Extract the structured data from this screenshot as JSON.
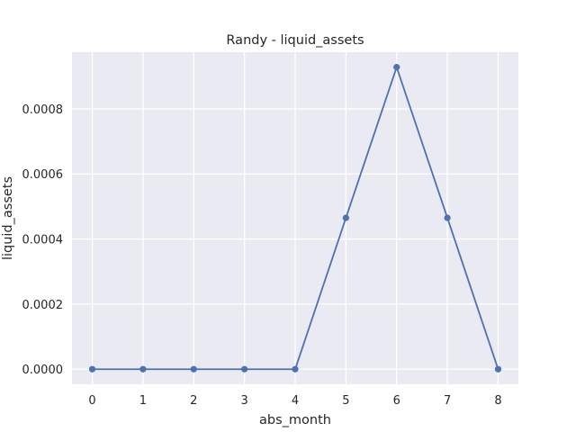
{
  "chart_data": {
    "type": "line",
    "title": "Randy - liquid_assets",
    "xlabel": "abs_month",
    "ylabel": "liquid_assets",
    "x": [
      0,
      1,
      2,
      3,
      4,
      5,
      6,
      7,
      8
    ],
    "series": [
      {
        "values": [
          0.0,
          0.0,
          0.0,
          0.0,
          0.0,
          0.000465,
          0.000928,
          0.000465,
          0.0
        ],
        "color": "#4c72b0"
      }
    ],
    "xlim": [
      -0.4,
      8.4
    ],
    "ylim": [
      -4.64e-05,
      0.000974
    ],
    "xticks": [
      0,
      1,
      2,
      3,
      4,
      5,
      6,
      7,
      8
    ],
    "xtick_labels": [
      "0",
      "1",
      "2",
      "3",
      "4",
      "5",
      "6",
      "7",
      "8"
    ],
    "yticks": [
      0.0,
      0.0002,
      0.0004,
      0.0006,
      0.0008
    ],
    "ytick_labels": [
      "0.0000",
      "0.0002",
      "0.0004",
      "0.0006",
      "0.0008"
    ],
    "grid": true,
    "markers": true,
    "background": "#eaeaf2",
    "legend": "none"
  }
}
